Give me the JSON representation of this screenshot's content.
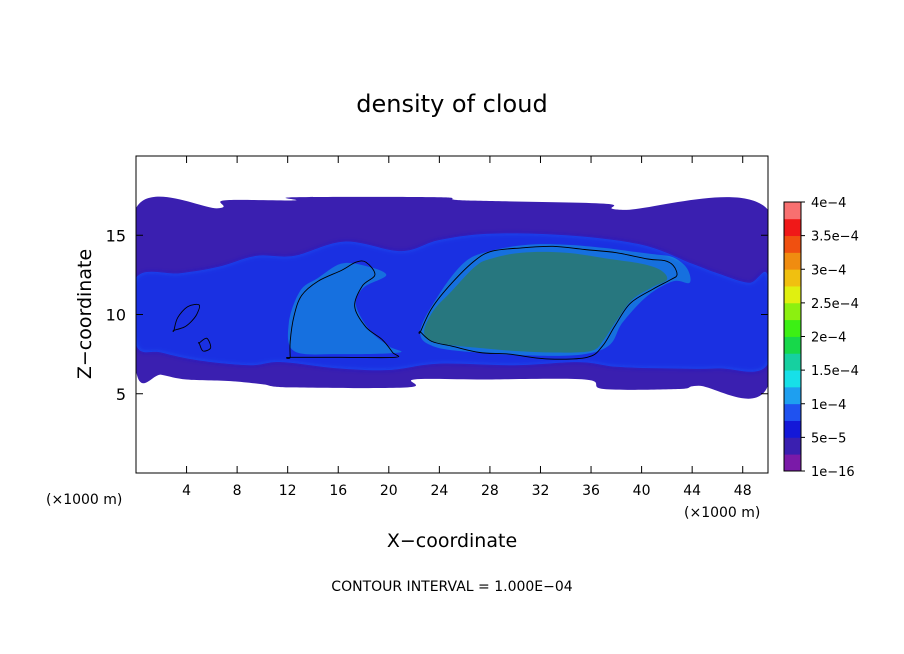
{
  "chart_data": {
    "type": "heatmap",
    "title": "density of cloud",
    "xlabel": "X−coordinate",
    "ylabel": "Z−coordinate",
    "x_unit_label": "(×1000 m)",
    "x_unit_label_right": "(×1000 m)",
    "xlim": [
      0,
      50
    ],
    "ylim": [
      0,
      20
    ],
    "x_ticks": [
      4,
      8,
      12,
      16,
      20,
      24,
      28,
      32,
      36,
      40,
      44,
      48
    ],
    "x_tick_labels": [
      "4",
      "8",
      "12",
      "16",
      "20",
      "24",
      "28",
      "32",
      "36",
      "40",
      "44",
      "48"
    ],
    "y_ticks": [
      5,
      10,
      15
    ],
    "y_tick_labels": [
      "5",
      "10",
      "15"
    ],
    "footer": "CONTOUR INTERVAL = 1.000E−04",
    "colorbar": {
      "labels": [
        "1e−16",
        "5e−5",
        "1e−4",
        "1.5e−4",
        "2e−4",
        "2.5e−4",
        "3e−4",
        "3.5e−4",
        "4e−4"
      ],
      "level_values": [
        1e-16,
        5e-05,
        0.0001,
        0.00015,
        0.0002,
        0.00025,
        0.0003,
        0.00035,
        0.0004
      ],
      "colors": [
        "#7a1aa8",
        "#3a1fb0",
        "#1418d8",
        "#1f52f0",
        "#1e9ff0",
        "#17e0e8",
        "#16d0a0",
        "#17d84a",
        "#3cf014",
        "#8cf010",
        "#e0f010",
        "#f0c010",
        "#f08c10",
        "#f05010",
        "#f01818",
        "#f87070"
      ]
    },
    "regions": [
      {
        "name": "cloud-envelope",
        "level": 1,
        "polygon": [
          [
            0,
            16.7
          ],
          [
            6.5,
            16.7
          ],
          [
            7.0,
            17.2
          ],
          [
            12.5,
            17.2
          ],
          [
            12.5,
            17.4
          ],
          [
            24,
            17.4
          ],
          [
            26,
            17.2
          ],
          [
            37,
            17.0
          ],
          [
            38.5,
            16.6
          ],
          [
            50,
            16.6
          ],
          [
            50,
            5.5
          ],
          [
            44.5,
            5.5
          ],
          [
            43,
            5.3
          ],
          [
            37,
            5.3
          ],
          [
            35.5,
            5.9
          ],
          [
            27,
            5.9
          ],
          [
            22,
            5.9
          ],
          [
            21.5,
            5.4
          ],
          [
            12.2,
            5.4
          ],
          [
            10,
            5.6
          ],
          [
            7.5,
            5.8
          ],
          [
            4,
            5.9
          ],
          [
            2,
            6.2
          ],
          [
            0,
            6.5
          ]
        ]
      },
      {
        "name": "blue-band",
        "level": 3,
        "polygon": [
          [
            0,
            12.3
          ],
          [
            3.5,
            12.6
          ],
          [
            6.5,
            13.0
          ],
          [
            9.5,
            13.7
          ],
          [
            12.5,
            13.7
          ],
          [
            16.5,
            14.6
          ],
          [
            21,
            14.0
          ],
          [
            24,
            14.7
          ],
          [
            28,
            15.1
          ],
          [
            34,
            15.0
          ],
          [
            40,
            14.4
          ],
          [
            44,
            13.2
          ],
          [
            46,
            12.6
          ],
          [
            48.5,
            12.0
          ],
          [
            50,
            12.4
          ],
          [
            50,
            6.9
          ],
          [
            46,
            6.6
          ],
          [
            42,
            6.6
          ],
          [
            38,
            6.7
          ],
          [
            35,
            7.0
          ],
          [
            30,
            6.8
          ],
          [
            24,
            6.9
          ],
          [
            20,
            6.5
          ],
          [
            16,
            6.6
          ],
          [
            11.5,
            7.0
          ],
          [
            9,
            6.8
          ],
          [
            5,
            7.1
          ],
          [
            2,
            7.6
          ],
          [
            0,
            8.1
          ]
        ]
      },
      {
        "name": "cyan-left",
        "level": 5,
        "polygon": [
          [
            12.5,
            7.7
          ],
          [
            12.1,
            9.5
          ],
          [
            13,
            11.5
          ],
          [
            14.4,
            12.3
          ],
          [
            16.2,
            13.2
          ],
          [
            18,
            13.1
          ],
          [
            19.8,
            12.5
          ],
          [
            18.0,
            11.7
          ],
          [
            17.4,
            10.6
          ],
          [
            18.5,
            9.0
          ],
          [
            20.0,
            8.0
          ],
          [
            20.8,
            7.6
          ],
          [
            16,
            7.5
          ]
        ]
      },
      {
        "name": "cyan-right",
        "level": 5,
        "polygon": [
          [
            22.5,
            9.0
          ],
          [
            24,
            11.3
          ],
          [
            26,
            13.3
          ],
          [
            28,
            14.0
          ],
          [
            31,
            14.4
          ],
          [
            34,
            14.4
          ],
          [
            37,
            14.2
          ],
          [
            39,
            14.0
          ],
          [
            41,
            13.8
          ],
          [
            42.5,
            13.6
          ],
          [
            43.6,
            12.9
          ],
          [
            43.8,
            12.0
          ],
          [
            42.5,
            12.1
          ],
          [
            40.5,
            11.2
          ],
          [
            38.5,
            9.5
          ],
          [
            37.5,
            8.1
          ],
          [
            35.5,
            7.5
          ],
          [
            32,
            7.4
          ],
          [
            27,
            7.6
          ],
          [
            23.5,
            8.0
          ]
        ]
      },
      {
        "name": "green-core",
        "level": 8,
        "polygon": [
          [
            22.8,
            8.8
          ],
          [
            23.5,
            10.2
          ],
          [
            25,
            11.5
          ],
          [
            26.8,
            13.0
          ],
          [
            28,
            13.5
          ],
          [
            30.5,
            13.9
          ],
          [
            34,
            13.9
          ],
          [
            37.5,
            13.5
          ],
          [
            40,
            13.2
          ],
          [
            41.5,
            12.8
          ],
          [
            42.0,
            12.2
          ],
          [
            40.8,
            11.7
          ],
          [
            39.2,
            10.9
          ],
          [
            38,
            9.6
          ],
          [
            37.0,
            8.4
          ],
          [
            36,
            7.7
          ],
          [
            33,
            7.6
          ],
          [
            30,
            7.7
          ],
          [
            27,
            7.9
          ],
          [
            24,
            8.2
          ]
        ]
      },
      {
        "name": "right-blob",
        "level": 3,
        "polygon": [
          [
            42.3,
            9.7
          ],
          [
            43,
            10.4
          ],
          [
            44.5,
            10.3
          ],
          [
            45.3,
            9.6
          ],
          [
            44.3,
            9.1
          ],
          [
            43.6,
            8.6
          ],
          [
            42.8,
            9.0
          ]
        ]
      },
      {
        "name": "left-small",
        "level": 3,
        "polygon": [
          [
            3.0,
            9.2
          ],
          [
            3.6,
            10.2
          ],
          [
            4.6,
            10.7
          ],
          [
            5.3,
            10.6
          ],
          [
            4.7,
            9.8
          ],
          [
            4.0,
            9.1
          ]
        ]
      }
    ],
    "contours": [
      {
        "level": 0.0001,
        "points": [
          [
            12.2,
            7.3
          ],
          [
            12.2,
            8.3
          ],
          [
            12.5,
            9.9
          ],
          [
            13.1,
            11.2
          ],
          [
            14.4,
            12.1
          ],
          [
            16.3,
            12.8
          ],
          [
            17.4,
            13.3
          ],
          [
            18.2,
            13.3
          ],
          [
            18.9,
            12.5
          ],
          [
            17.9,
            11.8
          ],
          [
            17.3,
            10.5
          ],
          [
            18.2,
            9.2
          ],
          [
            19.5,
            8.4
          ],
          [
            20.3,
            7.6
          ],
          [
            20.5,
            7.3
          ],
          [
            16.2,
            7.3
          ],
          [
            12.2,
            7.3
          ]
        ]
      },
      {
        "level": 0.0001,
        "points": [
          [
            22.5,
            8.9
          ],
          [
            23.4,
            10.4
          ],
          [
            25,
            12.0
          ],
          [
            26.8,
            13.4
          ],
          [
            28.2,
            14.0
          ],
          [
            30.5,
            14.2
          ],
          [
            33,
            14.3
          ],
          [
            35.5,
            14.1
          ],
          [
            38,
            13.9
          ],
          [
            40.5,
            13.5
          ],
          [
            41.8,
            13.4
          ],
          [
            42.5,
            13.1
          ],
          [
            42.8,
            12.5
          ],
          [
            42.3,
            12.2
          ],
          [
            40.9,
            11.6
          ],
          [
            39.1,
            10.7
          ],
          [
            37.9,
            9.3
          ],
          [
            36.9,
            8.0
          ],
          [
            35.7,
            7.3
          ],
          [
            32.5,
            7.2
          ],
          [
            29.5,
            7.5
          ],
          [
            27.2,
            7.6
          ],
          [
            25,
            8.0
          ],
          [
            23.4,
            8.3
          ],
          [
            22.5,
            8.9
          ]
        ]
      },
      {
        "level": 0.0001,
        "points": [
          [
            3.0,
            9.0
          ],
          [
            3.3,
            9.8
          ],
          [
            4.1,
            10.5
          ],
          [
            5.0,
            10.6
          ],
          [
            4.8,
            10.0
          ],
          [
            4.3,
            9.5
          ],
          [
            3.8,
            9.2
          ],
          [
            3.0,
            9.0
          ]
        ]
      },
      {
        "level": 0.0001,
        "points": [
          [
            5.0,
            8.2
          ],
          [
            5.6,
            8.5
          ],
          [
            5.9,
            7.9
          ],
          [
            5.3,
            7.7
          ],
          [
            5.0,
            8.2
          ]
        ]
      }
    ],
    "grid": false,
    "legend": "right"
  }
}
